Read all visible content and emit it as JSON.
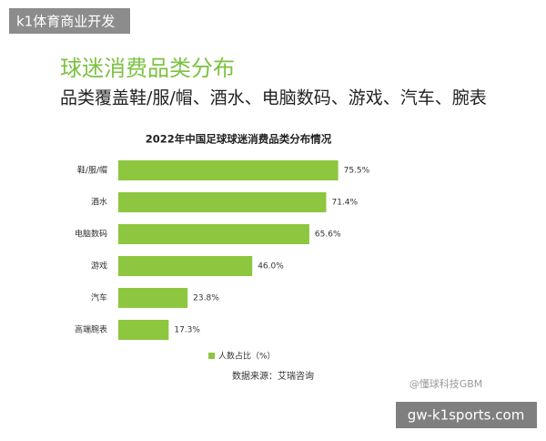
{
  "header": {
    "tag": "k1体育商业开发",
    "title": "球迷消费品类分布",
    "subtitle": "品类覆盖鞋/服/帽、酒水、电脑数码、游戏、汽车、腕表"
  },
  "chart_data": {
    "type": "bar",
    "orientation": "horizontal",
    "title": "2022年中国足球球迷消费品类分布情况",
    "categories": [
      "鞋/服/帽",
      "酒水",
      "电脑数码",
      "游戏",
      "汽车",
      "高端腕表"
    ],
    "series": [
      {
        "name": "人数占比（%）",
        "color": "#8dc63f",
        "values": [
          75.5,
          71.4,
          65.6,
          46.0,
          23.8,
          17.3
        ],
        "value_labels": [
          "75.5%",
          "71.4%",
          "65.6%",
          "46.0%",
          "23.8%",
          "17.3%"
        ]
      }
    ]
  },
  "source": "数据来源：艾瑞咨询",
  "watermark": "@懂球科技GBM",
  "footer": {
    "url": "gw-k1sports.com"
  }
}
